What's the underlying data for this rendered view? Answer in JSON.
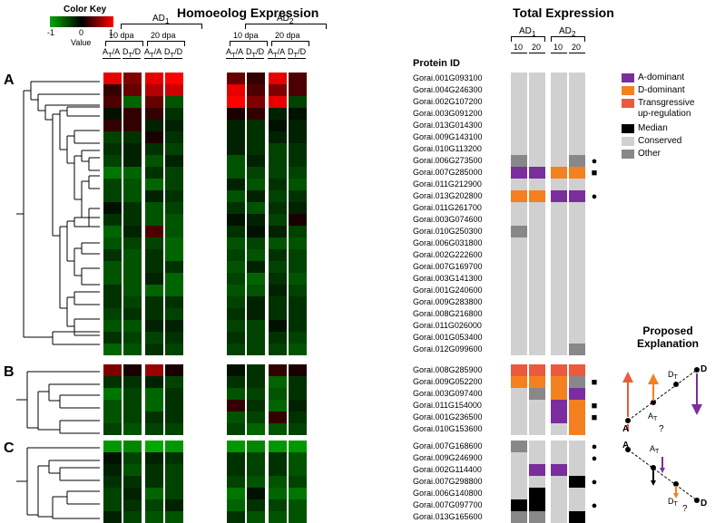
{
  "colors": {
    "heatmap": {
      "min": "#00a800",
      "zero": "#000000",
      "max": "#ff0000"
    },
    "A_dominant": "#7a2e9e",
    "D_dominant": "#f58020",
    "Transgressive": "#ec5a3d",
    "Median": "#000000",
    "Conserved": "#d0d0d0",
    "Other": "#888888",
    "bg": "#ffffff",
    "dendro": "#000000"
  },
  "titles": {
    "homoeolog": "Homoeolog Expression",
    "total": "Total Expression",
    "protein": "Protein ID",
    "colorkey": "Color Key",
    "value": "Value",
    "proposed": "Proposed",
    "explanation": "Explanation"
  },
  "groups": {
    "ad1": "AD",
    "ad1_sub": "1",
    "ad2": "AD",
    "ad2_sub": "2",
    "dpa10": "10 dpa",
    "dpa20": "20 dpa",
    "at_a": "A",
    "at_a_sub": "T",
    "at_a_denom": "/A",
    "dt_d": "D",
    "dt_d_sub": "T",
    "dt_d_denom": "/D",
    "t10": "10",
    "t20": "20"
  },
  "panels": {
    "A": "A",
    "B": "B",
    "C": "C"
  },
  "legend": {
    "A_dominant": "A-dominant",
    "D_dominant": "D-dominant",
    "Transgressive": "Transgressive",
    "Transgressive2": "up-regulation",
    "Median": "Median",
    "Conserved": "Conserved",
    "Other": "Other"
  },
  "panelA": {
    "proteins": [
      "Gorai.001G093100",
      "Gorai.004G246300",
      "Gorai.002G107200",
      "Gorai.003G091200",
      "Gorai.013G014300",
      "Gorai.009G143100",
      "Gorai.010G113200",
      "Gorai.006G273500",
      "Gorai.007G285000",
      "Gorai.011G212900",
      "Gorai.013G202800",
      "Gorai.011G261700",
      "Gorai.003G074600",
      "Gorai.010G250300",
      "Gorai.006G031800",
      "Gorai.002G222600",
      "Gorai.007G169700",
      "Gorai.003G141300",
      "Gorai.001G240600",
      "Gorai.009G283800",
      "Gorai.008G216800",
      "Gorai.011G026000",
      "Gorai.001G053400",
      "Gorai.012G099600"
    ],
    "heatmap": [
      [
        0.9,
        0.2,
        0.3,
        -0.1,
        0.2,
        -0.4,
        -0.3,
        -0.4,
        -0.7,
        -0.4,
        -0.4,
        -0.1,
        -0.3,
        -0.6,
        -0.5,
        -0.3,
        -0.5,
        -0.5,
        -0.3,
        -0.3,
        -0.4,
        -0.5,
        -0.3,
        -0.6
      ],
      [
        0.5,
        0.4,
        -0.6,
        0.2,
        0.2,
        -0.3,
        -0.2,
        -0.2,
        -0.6,
        -0.5,
        -0.5,
        -0.3,
        -0.3,
        -0.2,
        -0.4,
        -0.5,
        -0.5,
        -0.5,
        -0.5,
        -0.4,
        -0.3,
        -0.5,
        -0.4,
        -0.5
      ],
      [
        0.9,
        0.7,
        0.4,
        0.2,
        -0.2,
        0.1,
        -0.3,
        -0.5,
        -0.3,
        -0.6,
        -0.2,
        -0.5,
        -0.5,
        0.3,
        -0.4,
        -0.3,
        -0.3,
        -0.2,
        -0.6,
        -0.3,
        -0.3,
        -0.2,
        -0.4,
        -0.3
      ],
      [
        1.0,
        0.8,
        -0.5,
        -0.3,
        -0.2,
        -0.3,
        -0.4,
        -0.2,
        -0.4,
        -0.4,
        -0.3,
        -0.4,
        -0.5,
        -0.5,
        -0.6,
        -0.6,
        -0.3,
        -0.6,
        -0.6,
        -0.3,
        -0.4,
        -0.2,
        -0.3,
        -0.4
      ],
      [
        0.4,
        0.9,
        1.0,
        0.1,
        -0.2,
        -0.2,
        -0.2,
        -0.5,
        -0.5,
        -0.2,
        -0.5,
        -0.3,
        -0.1,
        -0.3,
        -0.5,
        -0.4,
        -0.5,
        -0.4,
        -0.5,
        -0.4,
        -0.3,
        -0.4,
        -0.3,
        -0.4
      ],
      [
        0.2,
        0.3,
        0.5,
        0.2,
        -0.3,
        -0.3,
        -0.3,
        -0.2,
        -0.4,
        -0.5,
        -0.2,
        -0.5,
        -0.2,
        -0.1,
        -0.4,
        -0.5,
        -0.2,
        -0.6,
        -0.5,
        -0.2,
        -0.2,
        -0.4,
        -0.4,
        -0.4
      ],
      [
        0.9,
        0.5,
        0.9,
        -0.2,
        -0.1,
        -0.2,
        -0.4,
        -0.4,
        -0.4,
        -0.3,
        -0.4,
        -0.3,
        -0.4,
        -0.2,
        -0.5,
        -0.3,
        -0.4,
        -0.3,
        -0.2,
        -0.3,
        -0.3,
        -0.1,
        -0.3,
        -0.4
      ],
      [
        0.3,
        0.3,
        -0.4,
        -0.1,
        -0.2,
        -0.2,
        -0.3,
        -0.3,
        -0.4,
        -0.5,
        -0.3,
        -0.2,
        0.1,
        -0.4,
        -0.5,
        -0.4,
        -0.4,
        -0.5,
        -0.4,
        -0.3,
        -0.3,
        -0.3,
        -0.4,
        -0.5
      ]
    ],
    "total": [
      [
        "C",
        "C",
        "C",
        "C",
        "C",
        "C",
        "C",
        "O",
        "A",
        "C",
        "D",
        "C",
        "C",
        "O",
        "C",
        "C",
        "C",
        "C",
        "C",
        "C",
        "C",
        "C",
        "C",
        "C"
      ],
      [
        "C",
        "C",
        "C",
        "C",
        "C",
        "C",
        "C",
        "C",
        "A",
        "C",
        "D",
        "C",
        "C",
        "C",
        "C",
        "C",
        "C",
        "C",
        "C",
        "C",
        "C",
        "C",
        "C",
        "C"
      ],
      [
        "C",
        "C",
        "C",
        "C",
        "C",
        "C",
        "C",
        "C",
        "D",
        "C",
        "A",
        "C",
        "C",
        "C",
        "C",
        "C",
        "C",
        "C",
        "C",
        "C",
        "C",
        "C",
        "C",
        "C"
      ],
      [
        "C",
        "C",
        "C",
        "C",
        "C",
        "C",
        "C",
        "O",
        "D",
        "C",
        "A",
        "C",
        "C",
        "C",
        "C",
        "C",
        "C",
        "C",
        "C",
        "C",
        "C",
        "C",
        "C",
        "O"
      ]
    ],
    "markers": [
      "",
      "",
      "",
      "",
      "",
      "",
      "",
      "●",
      "■",
      "",
      "●",
      "",
      "",
      "",
      "",
      "",
      "",
      "",
      "",
      "",
      "",
      "",
      "",
      ""
    ]
  },
  "panelB": {
    "proteins": [
      "Gorai.008G285900",
      "Gorai.009G052200",
      "Gorai.003G097400",
      "Gorai.011G154000",
      "Gorai.001G236500",
      "Gorai.010G153600"
    ],
    "heatmap": [
      [
        0.5,
        -0.3,
        -0.7,
        -0.5,
        -0.5,
        -0.4
      ],
      [
        0.1,
        -0.3,
        -0.4,
        -0.4,
        -0.4,
        -0.5
      ],
      [
        0.6,
        -0.2,
        -0.6,
        -0.6,
        -0.3,
        -0.4
      ],
      [
        0.1,
        -0.4,
        -0.3,
        -0.3,
        -0.3,
        -0.4
      ],
      [
        -0.1,
        -0.3,
        -0.5,
        0.2,
        -0.5,
        -0.4
      ],
      [
        -0.3,
        -0.3,
        -0.4,
        -0.3,
        -0.4,
        -0.6
      ],
      [
        0.2,
        -0.6,
        -0.5,
        -0.6,
        0.2,
        -0.5
      ],
      [
        0.1,
        -0.3,
        -0.3,
        -0.2,
        -0.3,
        -0.4
      ]
    ],
    "total": [
      [
        "T",
        "D",
        "C",
        "C",
        "C",
        "C"
      ],
      [
        "T",
        "D",
        "O",
        "C",
        "C",
        "C"
      ],
      [
        "T",
        "D",
        "D",
        "A",
        "A",
        "C"
      ],
      [
        "T",
        "O",
        "A",
        "D",
        "D",
        "D"
      ]
    ],
    "markers": [
      "",
      "■",
      "",
      "■",
      "■",
      ""
    ]
  },
  "panelC": {
    "proteins": [
      "Gorai.007G168600",
      "Gorai.009G246900",
      "Gorai.002G114400",
      "Gorai.007G298800",
      "Gorai.006G140800",
      "Gorai.007G097700",
      "Gorai.013G165600"
    ],
    "heatmap": [
      [
        -0.9,
        -0.1,
        -0.2,
        -0.3,
        -0.4,
        -0.4,
        -0.2
      ],
      [
        -0.8,
        -0.4,
        -0.5,
        -0.3,
        -0.2,
        -0.3,
        -0.4
      ],
      [
        -1.0,
        -0.2,
        -0.3,
        -0.3,
        -0.6,
        -0.4,
        -0.5
      ],
      [
        -0.9,
        -0.3,
        -0.4,
        -0.4,
        -0.4,
        -0.2,
        -0.5
      ],
      [
        -0.9,
        -0.3,
        -0.3,
        -0.4,
        -0.7,
        -0.6,
        -0.3
      ],
      [
        -0.8,
        -0.4,
        -0.4,
        -0.5,
        -0.1,
        -0.3,
        -0.5
      ],
      [
        -0.9,
        -0.3,
        -0.3,
        -0.5,
        -0.6,
        -0.4,
        -0.5
      ],
      [
        -0.9,
        -0.5,
        -0.5,
        -0.4,
        -0.7,
        -0.5,
        -0.5
      ]
    ],
    "total": [
      [
        "O",
        "C",
        "C",
        "C",
        "C",
        "M",
        "O"
      ],
      [
        "C",
        "C",
        "A",
        "C",
        "M",
        "M",
        "O"
      ],
      [
        "C",
        "C",
        "A",
        "C",
        "C",
        "C",
        "C"
      ],
      [
        "C",
        "C",
        "C",
        "M",
        "C",
        "C",
        "M"
      ]
    ],
    "markers": [
      "●",
      "●",
      "",
      "●",
      "",
      "●",
      ""
    ]
  },
  "colorkey_ticks": [
    "-1",
    "0",
    "1"
  ],
  "diag_labels": {
    "A": "A",
    "AT": "A",
    "AT_sub": "T",
    "D": "D",
    "DT": "D",
    "DT_sub": "T",
    "q": "?"
  }
}
